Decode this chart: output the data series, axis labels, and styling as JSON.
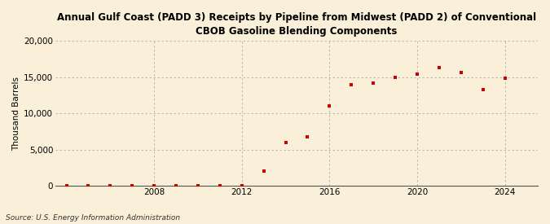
{
  "title": "Annual Gulf Coast (PADD 3) Receipts by Pipeline from Midwest (PADD 2) of Conventional\nCBOB Gasoline Blending Components",
  "ylabel": "Thousand Barrels",
  "source": "Source: U.S. Energy Information Administration",
  "background_color": "#faefd8",
  "marker_color": "#cc0000",
  "years": [
    2004,
    2005,
    2006,
    2007,
    2008,
    2009,
    2010,
    2011,
    2012,
    2013,
    2014,
    2015,
    2016,
    2017,
    2018,
    2019,
    2020,
    2021,
    2022,
    2023,
    2024
  ],
  "values": [
    20,
    20,
    30,
    30,
    50,
    30,
    50,
    50,
    20,
    2000,
    6000,
    6800,
    11000,
    14000,
    14200,
    15000,
    15400,
    16300,
    15700,
    13300,
    14900
  ],
  "xlim": [
    2003.5,
    2025.5
  ],
  "ylim": [
    0,
    20000
  ],
  "yticks": [
    0,
    5000,
    10000,
    15000,
    20000
  ],
  "xticks": [
    2008,
    2012,
    2016,
    2020,
    2024
  ],
  "grid_color": "#b0b0b0",
  "title_fontsize": 8.5,
  "axis_fontsize": 7.5,
  "source_fontsize": 6.5
}
